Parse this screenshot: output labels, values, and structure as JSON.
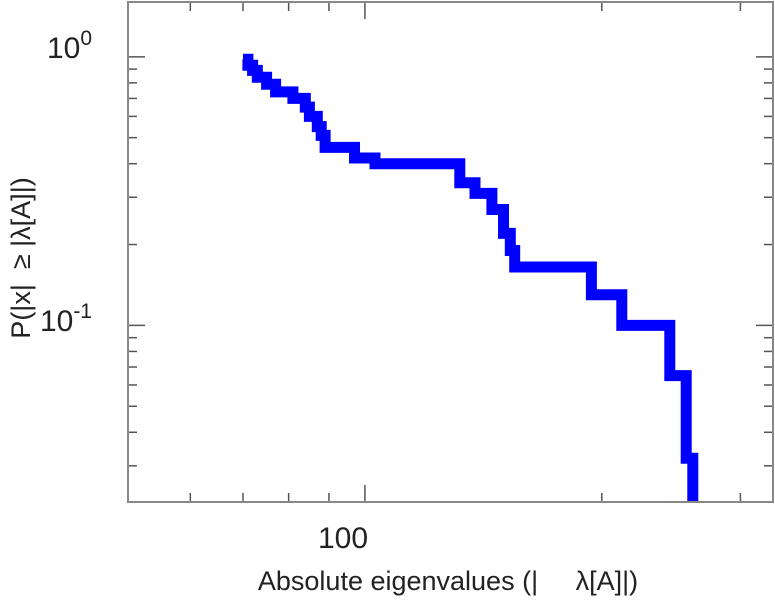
{
  "chart_data": {
    "type": "line",
    "step": true,
    "xscale": "log",
    "yscale": "log",
    "xlim": [
      50,
      330
    ],
    "ylim": [
      0.022,
      1.6
    ],
    "xlabel": "Absolute eigenvalues (|     λ[A]|)",
    "ylabel": "P(|x|  ≥ |λ[A]|)",
    "grid": false,
    "legend": "none",
    "x_ticks": [
      {
        "value": 100,
        "label": "100"
      }
    ],
    "y_ticks": [
      {
        "value": 1,
        "base": "10",
        "exp": "0"
      },
      {
        "value": 0.1,
        "base": "10",
        "exp": "-1"
      }
    ],
    "x_minor_ticks": [
      60,
      70,
      80,
      90,
      200,
      300
    ],
    "y_minor_ticks": [
      0.03,
      0.04,
      0.05,
      0.06,
      0.07,
      0.08,
      0.09,
      0.2,
      0.3,
      0.4,
      0.5,
      0.6,
      0.7,
      0.8,
      0.9
    ],
    "series": [
      {
        "color": "#0000ff",
        "points": [
          [
            70,
            0.98
          ],
          [
            71,
            0.98
          ],
          [
            71,
            0.93
          ],
          [
            72,
            0.93
          ],
          [
            72,
            0.89
          ],
          [
            73,
            0.89
          ],
          [
            73,
            0.84
          ],
          [
            75,
            0.84
          ],
          [
            75,
            0.79
          ],
          [
            77,
            0.79
          ],
          [
            77,
            0.74
          ],
          [
            81,
            0.74
          ],
          [
            81,
            0.7
          ],
          [
            84,
            0.7
          ],
          [
            84,
            0.65
          ],
          [
            85,
            0.65
          ],
          [
            85,
            0.6
          ],
          [
            87,
            0.6
          ],
          [
            87,
            0.55
          ],
          [
            88,
            0.55
          ],
          [
            88,
            0.51
          ],
          [
            89,
            0.51
          ],
          [
            89,
            0.46
          ],
          [
            97,
            0.46
          ],
          [
            97,
            0.42
          ],
          [
            103,
            0.42
          ],
          [
            103,
            0.4
          ],
          [
            132,
            0.4
          ],
          [
            132,
            0.34
          ],
          [
            138,
            0.34
          ],
          [
            138,
            0.31
          ],
          [
            145,
            0.31
          ],
          [
            145,
            0.27
          ],
          [
            150,
            0.27
          ],
          [
            150,
            0.22
          ],
          [
            153,
            0.22
          ],
          [
            153,
            0.19
          ],
          [
            155,
            0.19
          ],
          [
            155,
            0.165
          ],
          [
            194,
            0.165
          ],
          [
            194,
            0.13
          ],
          [
            212,
            0.13
          ],
          [
            212,
            0.1
          ],
          [
            244,
            0.1
          ],
          [
            244,
            0.065
          ],
          [
            256,
            0.065
          ],
          [
            256,
            0.032
          ],
          [
            261,
            0.032
          ],
          [
            261,
            0.022
          ]
        ]
      }
    ]
  }
}
